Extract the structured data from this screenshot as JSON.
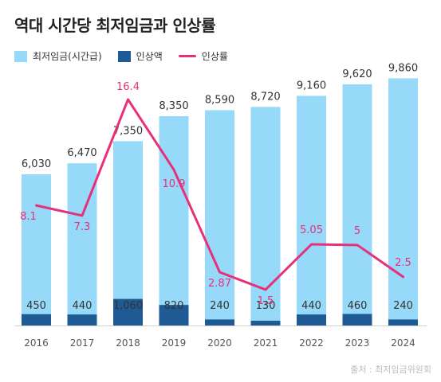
{
  "title": "역대 시간당 최저임금과 인상률",
  "source": "출처 : 최저임금위원회",
  "legend": {
    "wage": "최저임금(시간급)",
    "increase": "인상액",
    "rate": "인상률"
  },
  "colors": {
    "wage": "#96d9f8",
    "increase": "#1e5a94",
    "rate": "#e8307a",
    "axis": "#555555",
    "wage_label": "#333333",
    "increase_label": "#ffffff",
    "rate_label": "#e8307a"
  },
  "chart_data": {
    "type": "bar",
    "categories": [
      "2016",
      "2017",
      "2018",
      "2019",
      "2020",
      "2021",
      "2022",
      "2023",
      "2024"
    ],
    "series": [
      {
        "name": "최저임금(시간급)",
        "type": "bar",
        "values": [
          6030,
          6470,
          7350,
          8350,
          8590,
          8720,
          9160,
          9620,
          9860
        ],
        "labels": [
          "6,030",
          "6,470",
          "7,350",
          "8,350",
          "8,590",
          "8,720",
          "9,160",
          "9,620",
          "9,860"
        ]
      },
      {
        "name": "인상액",
        "type": "bar",
        "values": [
          450,
          440,
          1060,
          820,
          240,
          130,
          440,
          460,
          240
        ],
        "labels": [
          "450",
          "440",
          "1,060",
          "820",
          "240",
          "130",
          "440",
          "460",
          "240"
        ]
      },
      {
        "name": "인상률",
        "type": "line",
        "values": [
          8.1,
          7.3,
          16.4,
          10.9,
          2.87,
          1.5,
          5.05,
          5,
          2.5
        ],
        "labels": [
          "8.1",
          "7.3",
          "16.4",
          "10.9",
          "2.87",
          "1.5",
          "5.05",
          "5",
          "2.5"
        ]
      }
    ],
    "ylim": [
      0,
      10000
    ],
    "y2lim": [
      0,
      18
    ],
    "legend_position": "top-left",
    "grid": false
  }
}
